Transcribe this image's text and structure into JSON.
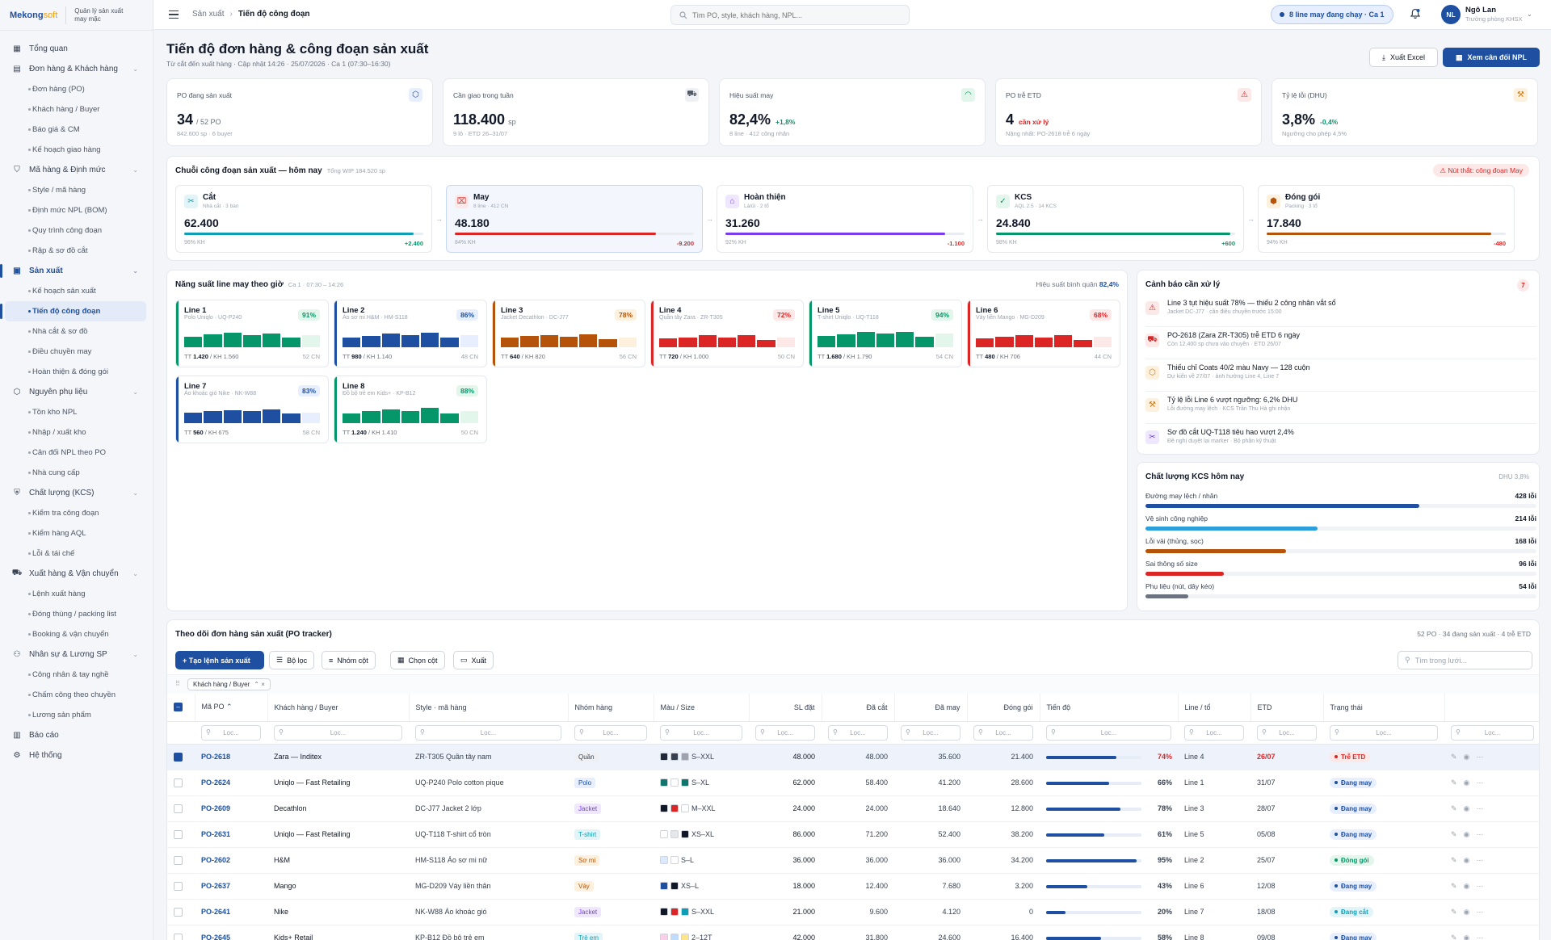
{
  "brand": {
    "logo_main": "Mekong",
    "logo_accent": "soft",
    "subtitle_1": "Quản lý sản xuất",
    "subtitle_2": "may mặc"
  },
  "nav": [
    {
      "label": "Tổng quan",
      "icon": "dashboard-icon",
      "type": "section"
    },
    {
      "label": "Đơn hàng & Khách hàng",
      "icon": "document-icon",
      "type": "section",
      "chev": true
    },
    {
      "label": "Đơn hàng (PO)",
      "type": "sub"
    },
    {
      "label": "Khách hàng / Buyer",
      "type": "sub"
    },
    {
      "label": "Báo giá & CM",
      "type": "sub"
    },
    {
      "label": "Kế hoạch giao hàng",
      "type": "sub"
    },
    {
      "label": "Mã hàng & Định mức",
      "icon": "shirt-icon",
      "type": "section",
      "chev": true
    },
    {
      "label": "Style / mã hàng",
      "type": "sub"
    },
    {
      "label": "Định mức NPL (BOM)",
      "type": "sub"
    },
    {
      "label": "Quy trình công đoạn",
      "type": "sub"
    },
    {
      "label": "Rập & sơ đồ cắt",
      "type": "sub"
    },
    {
      "label": "Sản xuất",
      "icon": "factory-icon",
      "type": "section",
      "chev": true,
      "active": true
    },
    {
      "label": "Kế hoạch sản xuất",
      "type": "sub"
    },
    {
      "label": "Tiến độ công đoạn",
      "type": "sub",
      "active": true
    },
    {
      "label": "Nhà cắt & sơ đồ",
      "type": "sub"
    },
    {
      "label": "Điều chuyền may",
      "type": "sub"
    },
    {
      "label": "Hoàn thiện & đóng gói",
      "type": "sub"
    },
    {
      "label": "Nguyên phụ liệu",
      "icon": "box-icon",
      "type": "section",
      "chev": true
    },
    {
      "label": "Tồn kho NPL",
      "type": "sub"
    },
    {
      "label": "Nhập / xuất kho",
      "type": "sub"
    },
    {
      "label": "Cân đối NPL theo PO",
      "type": "sub"
    },
    {
      "label": "Nhà cung cấp",
      "type": "sub"
    },
    {
      "label": "Chất lượng (KCS)",
      "icon": "shield-icon",
      "type": "section",
      "chev": true
    },
    {
      "label": "Kiểm tra công đoạn",
      "type": "sub"
    },
    {
      "label": "Kiểm hàng AQL",
      "type": "sub"
    },
    {
      "label": "Lỗi & tái chế",
      "type": "sub"
    },
    {
      "label": "Xuất hàng & Vận chuyển",
      "icon": "truck-icon",
      "type": "section",
      "chev": true
    },
    {
      "label": "Lệnh xuất hàng",
      "type": "sub"
    },
    {
      "label": "Đóng thùng / packing list",
      "type": "sub"
    },
    {
      "label": "Booking & vận chuyển",
      "type": "sub"
    },
    {
      "label": "Nhân sự & Lương SP",
      "icon": "users-icon",
      "type": "section",
      "chev": true
    },
    {
      "label": "Công nhân & tay nghề",
      "type": "sub"
    },
    {
      "label": "Chấm công theo chuyền",
      "type": "sub"
    },
    {
      "label": "Lương sản phẩm",
      "type": "sub"
    },
    {
      "label": "Báo cáo",
      "icon": "report-icon",
      "type": "section"
    },
    {
      "label": "Hệ thống",
      "icon": "gear-icon",
      "type": "section"
    }
  ],
  "topbar": {
    "crumb_1": "Sản xuất",
    "crumb_2": "Tiến độ công đoạn",
    "search_placeholder": "Tìm PO, style, khách hàng, NPL...",
    "status_pill": "8 line may đang chạy · Ca 1",
    "avatar": "NL",
    "user_name": "Ngô Lan",
    "user_role": "Trưởng phòng KHSX"
  },
  "page": {
    "title": "Tiến độ đơn hàng & công đoạn sản xuất",
    "subtitle": "Từ cắt đến xuất hàng · Cập nhật 14:26 · 25/07/2026 · Ca 1 (07:30–16:30)",
    "btn_excel": "Xuất Excel",
    "btn_npl": "Xem cân đối NPL"
  },
  "kpis": [
    {
      "label": "PO đang sản xuất",
      "value": "34",
      "unit": "/ 52 PO",
      "delta": "",
      "sub": "842.600 sp · 6 buyer",
      "icon": "box-icon",
      "icon_bg": "#e7efff",
      "icon_fg": "#1e4fa0"
    },
    {
      "label": "Cần giao trong tuần",
      "value": "118.400",
      "unit": "sp",
      "delta": "",
      "sub": "9 lô · ETD 26–31/07",
      "icon": "truck-icon",
      "icon_bg": "#eef0f4",
      "icon_fg": "#4b5563"
    },
    {
      "label": "Hiệu suất may",
      "value": "82,4%",
      "unit": "",
      "delta": "+1,8%",
      "delta_color": "#059669",
      "sub": "8 line · 412 công nhân",
      "icon": "gauge-icon",
      "icon_bg": "#e3f6ec",
      "icon_fg": "#059669"
    },
    {
      "label": "PO trễ ETD",
      "value": "4",
      "unit": "",
      "delta": "cần xử lý",
      "delta_color": "#dc2626",
      "sub": "Nặng nhất: PO-2618 trễ 6 ngày",
      "icon": "warning-icon",
      "icon_bg": "#fde8e8",
      "icon_fg": "#dc2626"
    },
    {
      "label": "Tỷ lệ lỗi (DHU)",
      "value": "3,8%",
      "unit": "",
      "delta": "-0,4%",
      "delta_color": "#059669",
      "sub": "Ngưỡng cho phép 4,5%",
      "icon": "wrench-icon",
      "icon_bg": "#fdf0dc",
      "icon_fg": "#d97706"
    }
  ],
  "chain": {
    "title": "Chuỗi công đoạn sản xuất — hôm nay",
    "sub": "Tổng WIP 184.520 sp",
    "alert": "⚠ Nút thắt: công đoạn May",
    "stages": [
      {
        "name": "Cắt",
        "sub": "Nhà cắt · 3 bàn",
        "value": "62.400",
        "pct": 96,
        "pct_label": "96% KH",
        "delta": "+2.400",
        "delta_color": "#059669",
        "bar_color": "#0e9fb6",
        "icon": "scissors-icon",
        "icon_bg": "#e1f4f8",
        "icon_fg": "#0e9fb6"
      },
      {
        "name": "May",
        "sub": "8 line · 412 CN",
        "value": "48.180",
        "pct": 84,
        "pct_label": "84% KH",
        "delta": "-9.200",
        "delta_color": "#dc2626",
        "bar_color": "#dc2626",
        "icon": "sewing-icon",
        "icon_bg": "#fde8e8",
        "icon_fg": "#dc2626"
      },
      {
        "name": "Hoàn thiện",
        "sub": "Là/ủi · 2 tổ",
        "value": "31.260",
        "pct": 92,
        "pct_label": "92% KH",
        "delta": "-1.100",
        "delta_color": "#dc2626",
        "bar_color": "#7c3aed",
        "icon": "iron-icon",
        "icon_bg": "#efe7fd",
        "icon_fg": "#7c3aed"
      },
      {
        "name": "KCS",
        "sub": "AQL 2.5 · 14 KCS",
        "value": "24.840",
        "pct": 98,
        "pct_label": "98% KH",
        "delta": "+600",
        "delta_color": "#059669",
        "bar_color": "#059669",
        "icon": "check-icon",
        "icon_bg": "#e3f6ec",
        "icon_fg": "#059669"
      },
      {
        "name": "Đóng gói",
        "sub": "Packing · 3 tổ",
        "value": "17.840",
        "pct": 94,
        "pct_label": "94% KH",
        "delta": "-480",
        "delta_color": "#dc2626",
        "bar_color": "#b45309",
        "icon": "package-icon",
        "icon_bg": "#fdf0dc",
        "icon_fg": "#b45309"
      }
    ]
  },
  "lines": {
    "title": "Năng suất line may theo giờ",
    "sub": "Ca 1 · 07:30 – 14:26",
    "avg_label": "Hiệu suất bình quân",
    "avg_value": "82,4%",
    "items": [
      {
        "name": "Line 1",
        "style": "Polo Uniqlo · UQ-P240",
        "pct": "91%",
        "tt": "1.420",
        "kh": "1.560",
        "cn": "52 CN",
        "color": "#059669",
        "pill_bg": "#e3f6ec",
        "bars": [
          0.62,
          0.74,
          0.86,
          0.7,
          0.82,
          0.56,
          0.7
        ]
      },
      {
        "name": "Line 2",
        "style": "Áo sơ mi H&M · HM-S118",
        "pct": "86%",
        "tt": "980",
        "kh": "1.140",
        "cn": "48 CN",
        "color": "#1e4fa0",
        "pill_bg": "#e7efff",
        "bars": [
          0.56,
          0.66,
          0.8,
          0.7,
          0.88,
          0.56,
          0.7
        ]
      },
      {
        "name": "Line 3",
        "style": "Jacket Decathlon · DC-J77",
        "pct": "78%",
        "tt": "640",
        "kh": "820",
        "cn": "56 CN",
        "color": "#b45309",
        "pill_bg": "#fdf0dc",
        "bars": [
          0.56,
          0.66,
          0.72,
          0.62,
          0.78,
          0.48,
          0.55
        ]
      },
      {
        "name": "Line 4",
        "style": "Quần tây Zara · ZR-T305",
        "pct": "72%",
        "tt": "720",
        "kh": "1.000",
        "cn": "50 CN",
        "color": "#dc2626",
        "pill_bg": "#fde8e8",
        "bars": [
          0.52,
          0.58,
          0.7,
          0.56,
          0.7,
          0.44,
          0.56
        ]
      },
      {
        "name": "Line 5",
        "style": "T-shirt Uniqlo · UQ-T118",
        "pct": "94%",
        "tt": "1.680",
        "kh": "1.790",
        "cn": "54 CN",
        "color": "#059669",
        "pill_bg": "#e3f6ec",
        "bars": [
          0.66,
          0.76,
          0.9,
          0.8,
          0.9,
          0.62,
          0.8
        ]
      },
      {
        "name": "Line 6",
        "style": "Váy liền Mango · MG-D209",
        "pct": "68%",
        "tt": "480",
        "kh": "706",
        "cn": "44 CN",
        "color": "#dc2626",
        "pill_bg": "#fde8e8",
        "bars": [
          0.52,
          0.62,
          0.7,
          0.58,
          0.7,
          0.44,
          0.6
        ]
      },
      {
        "name": "Line 7",
        "style": "Áo khoác gió Nike · NK-W88",
        "pct": "83%",
        "tt": "560",
        "kh": "675",
        "cn": "58 CN",
        "color": "#1e4fa0",
        "pill_bg": "#e7efff",
        "bars": [
          0.62,
          0.7,
          0.78,
          0.7,
          0.82,
          0.56,
          0.6
        ]
      },
      {
        "name": "Line 8",
        "style": "Đồ bộ trẻ em Kids+ · KP-B12",
        "pct": "88%",
        "tt": "1.240",
        "kh": "1.410",
        "cn": "50 CN",
        "color": "#059669",
        "pill_bg": "#e3f6ec",
        "bars": [
          0.58,
          0.72,
          0.82,
          0.7,
          0.92,
          0.56,
          0.7
        ]
      }
    ]
  },
  "warnings": {
    "title": "Cảnh báo cần xử lý",
    "count": "7",
    "items": [
      {
        "title": "Line 3 tụt hiệu suất 78% — thiếu 2 công nhân vắt sổ",
        "sub": "Jacket DC-J77 · cần điều chuyền trước 15:00",
        "icon": "warning-icon",
        "bg": "#fde8e8",
        "fg": "#dc2626"
      },
      {
        "title": "PO-2618 (Zara ZR-T305) trễ ETD 6 ngày",
        "sub": "Còn 12.400 sp chưa vào chuyền · ETD 26/07",
        "icon": "truck-icon",
        "bg": "#fde8e8",
        "fg": "#dc2626"
      },
      {
        "title": "Thiếu chỉ Coats 40/2 màu Navy — 128 cuộn",
        "sub": "Dự kiến về 27/07 · ảnh hưởng Line 4, Line 7",
        "icon": "box-icon",
        "bg": "#fdf0dc",
        "fg": "#d97706"
      },
      {
        "title": "Tỷ lệ lỗi Line 6 vượt ngưỡng: 6,2% DHU",
        "sub": "Lỗi đường may lệch · KCS Trần Thu Hà ghi nhận",
        "icon": "wrench-icon",
        "bg": "#fdf0dc",
        "fg": "#d97706"
      },
      {
        "title": "Sơ đồ cắt UQ-T118 tiêu hao vượt 2,4%",
        "sub": "Đề nghị duyệt lại marker · Bộ phận kỹ thuật",
        "icon": "scissors-icon",
        "bg": "#efe7fd",
        "fg": "#7c3aed"
      }
    ]
  },
  "quality": {
    "title": "Chất lượng KCS hôm nay",
    "dhu": "DHU 3,8%",
    "items": [
      {
        "name": "Đường may lệch / nhăn",
        "value": "428 lỗi",
        "frac": 0.7,
        "color": "#1e4fa0"
      },
      {
        "name": "Vệ sinh công nghiệp",
        "value": "214 lỗi",
        "frac": 0.44,
        "color": "#2a9fdb"
      },
      {
        "name": "Lỗi vải (thủng, sọc)",
        "value": "168 lỗi",
        "frac": 0.36,
        "color": "#b45309"
      },
      {
        "name": "Sai thông số size",
        "value": "96 lỗi",
        "frac": 0.2,
        "color": "#dc2626"
      },
      {
        "name": "Phụ liệu (nút, dây kéo)",
        "value": "54 lỗi",
        "frac": 0.11,
        "color": "#6b7280"
      }
    ]
  },
  "tracker": {
    "title": "Theo dõi đơn hàng sản xuất (PO tracker)",
    "summary": "52 PO · 34 đang sản xuất · 4 trễ ETD",
    "btn_create": "+ Tạo lệnh sản xuất",
    "btn_filter": "Bộ lọc",
    "btn_group": "Nhóm cột",
    "btn_cols": "Chọn cột",
    "btn_export": "Xuất",
    "search_placeholder": "Tìm trong lưới...",
    "group_chip": "Khách hàng / Buyer",
    "columns": [
      "Mã PO ⌃",
      "Khách hàng / Buyer",
      "Style · mã hàng",
      "Nhóm hàng",
      "Màu / Size",
      "SL đặt",
      "Đã cắt",
      "Đã may",
      "Đóng gói",
      "Tiến độ",
      "Line / tổ",
      "ETD",
      "Trạng thái"
    ],
    "filter_placeholder": "Lọc...",
    "rows": [
      {
        "po": "PO-2618",
        "buyer": "Zara — Inditex",
        "style": "ZR-T305 Quần tây nam",
        "group": "Quần",
        "group_bg": "#eef0f4",
        "group_fg": "#374151",
        "colors": [
          "#1f2937",
          "#374151",
          "#9ca3af"
        ],
        "size": "S–XXL",
        "qty": "48.000",
        "cut": "48.000",
        "sew": "35.600",
        "pack": "21.400",
        "progress": 74,
        "pct": "74%",
        "line": "Line 4",
        "etd": "26/07",
        "etd_red": true,
        "status": "Trễ ETD",
        "st_bg": "#fde8e8",
        "st_fg": "#dc2626",
        "selected": true
      },
      {
        "po": "PO-2624",
        "buyer": "Uniqlo — Fast Retailing",
        "style": "UQ-P240 Polo cotton pique",
        "group": "Polo",
        "group_bg": "#e7efff",
        "group_fg": "#1e4fa0",
        "colors": [
          "#0f766e",
          "#ffffff",
          "#0f766e"
        ],
        "size": "S–XL",
        "qty": "62.000",
        "cut": "58.400",
        "sew": "41.200",
        "pack": "28.600",
        "progress": 66,
        "pct": "66%",
        "line": "Line 1",
        "etd": "31/07",
        "etd_red": false,
        "status": "Đang may",
        "st_bg": "#e7efff",
        "st_fg": "#1e4fa0",
        "selected": false
      },
      {
        "po": "PO-2609",
        "buyer": "Decathlon",
        "style": "DC-J77 Jacket 2 lớp",
        "group": "Jacket",
        "group_bg": "#efe7fd",
        "group_fg": "#7c3aed",
        "colors": [
          "#111827",
          "#dc2626",
          "#ffffff"
        ],
        "size": "M–XXL",
        "qty": "24.000",
        "cut": "24.000",
        "sew": "18.640",
        "pack": "12.800",
        "progress": 78,
        "pct": "78%",
        "line": "Line 3",
        "etd": "28/07",
        "etd_red": false,
        "status": "Đang may",
        "st_bg": "#e7efff",
        "st_fg": "#1e4fa0",
        "selected": false
      },
      {
        "po": "PO-2631",
        "buyer": "Uniqlo — Fast Retailing",
        "style": "UQ-T118 T-shirt cổ tròn",
        "group": "T-shirt",
        "group_bg": "#e1f4f8",
        "group_fg": "#0e9fb6",
        "colors": [
          "#ffffff",
          "#e5e7eb",
          "#111827"
        ],
        "size": "XS–XL",
        "qty": "86.000",
        "cut": "71.200",
        "sew": "52.400",
        "pack": "38.200",
        "progress": 61,
        "pct": "61%",
        "line": "Line 5",
        "etd": "05/08",
        "etd_red": false,
        "status": "Đang may",
        "st_bg": "#e7efff",
        "st_fg": "#1e4fa0",
        "selected": false
      },
      {
        "po": "PO-2602",
        "buyer": "H&M",
        "style": "HM-S118 Áo sơ mi nữ",
        "group": "Sơ mi",
        "group_bg": "#fdf0dc",
        "group_fg": "#b45309",
        "colors": [
          "#dbeafe",
          "#ffffff"
        ],
        "size": "S–L",
        "qty": "36.000",
        "cut": "36.000",
        "sew": "36.000",
        "pack": "34.200",
        "progress": 95,
        "pct": "95%",
        "line": "Line 2",
        "etd": "25/07",
        "etd_red": false,
        "status": "Đóng gói",
        "st_bg": "#e3f6ec",
        "st_fg": "#059669",
        "selected": false
      },
      {
        "po": "PO-2637",
        "buyer": "Mango",
        "style": "MG-D209 Váy liền thân",
        "group": "Váy",
        "group_bg": "#fdf0dc",
        "group_fg": "#b45309",
        "colors": [
          "#1e4fa0",
          "#111827"
        ],
        "size": "XS–L",
        "qty": "18.000",
        "cut": "12.400",
        "sew": "7.680",
        "pack": "3.200",
        "progress": 43,
        "pct": "43%",
        "line": "Line 6",
        "etd": "12/08",
        "etd_red": false,
        "status": "Đang may",
        "st_bg": "#e7efff",
        "st_fg": "#1e4fa0",
        "selected": false
      },
      {
        "po": "PO-2641",
        "buyer": "Nike",
        "style": "NK-W88 Áo khoác gió",
        "group": "Jacket",
        "group_bg": "#efe7fd",
        "group_fg": "#7c3aed",
        "colors": [
          "#111827",
          "#dc2626",
          "#0e9fb6"
        ],
        "size": "S–XXL",
        "qty": "21.000",
        "cut": "9.600",
        "sew": "4.120",
        "pack": "0",
        "progress": 20,
        "pct": "20%",
        "line": "Line 7",
        "etd": "18/08",
        "etd_red": false,
        "status": "Đang cắt",
        "st_bg": "#e1f4f8",
        "st_fg": "#0e9fb6",
        "selected": false
      },
      {
        "po": "PO-2645",
        "buyer": "Kids+ Retail",
        "style": "KP-B12 Đồ bộ trẻ em",
        "group": "Trẻ em",
        "group_bg": "#e1f4f8",
        "group_fg": "#0e9fb6",
        "colors": [
          "#fbcfe8",
          "#bfdbfe",
          "#fde68a"
        ],
        "size": "2–12T",
        "qty": "42.000",
        "cut": "31.800",
        "sew": "24.600",
        "pack": "16.400",
        "progress": 58,
        "pct": "58%",
        "line": "Line 8",
        "etd": "09/08",
        "etd_red": false,
        "status": "Đang may",
        "st_bg": "#e7efff",
        "st_fg": "#1e4fa0",
        "selected": false
      }
    ]
  }
}
